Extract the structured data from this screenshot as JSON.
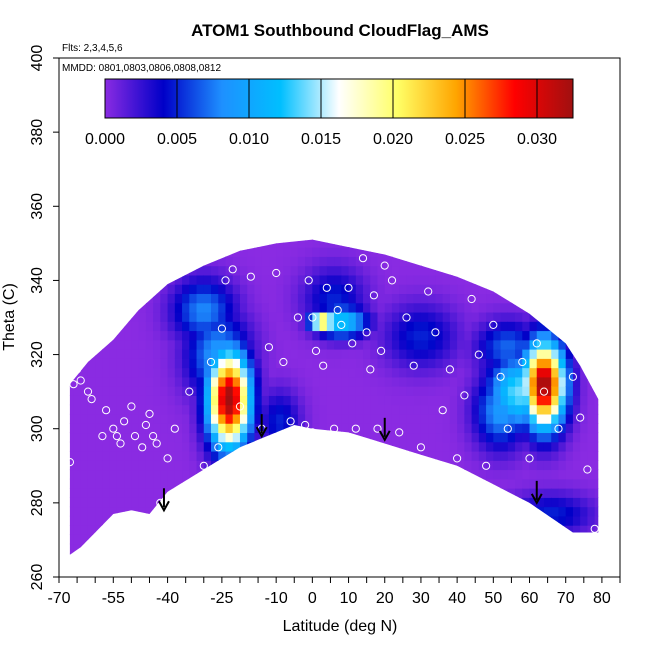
{
  "chart_data": {
    "type": "heatmap",
    "title": "ATOM1 Southbound CloudFlag_AMS",
    "notes": {
      "flights": "Flts: 2,3,4,5,6",
      "dates": "MMDD: 0801,0803,0806,0808,0812"
    },
    "xlabel": "Latitude (deg N)",
    "ylabel": "Theta (C)",
    "xlim": [
      -70,
      85
    ],
    "ylim": [
      260,
      400
    ],
    "x_tick_labels": [
      "-70",
      "-55",
      "-40",
      "-25",
      "-10",
      "0",
      "10",
      "20",
      "30",
      "40",
      "50",
      "60",
      "70",
      "80"
    ],
    "x_tick_values": [
      -70,
      -55,
      -40,
      -25,
      -10,
      0,
      10,
      20,
      30,
      40,
      50,
      60,
      70,
      80
    ],
    "y_tick_labels": [
      "260",
      "280",
      "300",
      "320",
      "340",
      "360",
      "380",
      "400"
    ],
    "y_tick_values": [
      260,
      280,
      300,
      320,
      340,
      360,
      380,
      400
    ],
    "colorbar": {
      "range": [
        0,
        0.0325
      ],
      "tick_values": [
        0,
        0.005,
        0.01,
        0.015,
        0.02,
        0.025,
        0.03
      ],
      "tick_labels": [
        "0.000",
        "0.005",
        "0.010",
        "0.015",
        "0.020",
        "0.025",
        "0.030"
      ],
      "colors": [
        "#8a2be2",
        "#0000c8",
        "#1e90ff",
        "#00bfff",
        "#ffffff",
        "#ffff66",
        "#ffa500",
        "#ff0000",
        "#a01010"
      ]
    },
    "domain_polygon": [
      [
        -67,
        266
      ],
      [
        -67,
        312
      ],
      [
        -62,
        318
      ],
      [
        -55,
        324
      ],
      [
        -48,
        332
      ],
      [
        -40,
        339
      ],
      [
        -30,
        344
      ],
      [
        -20,
        348
      ],
      [
        -10,
        350
      ],
      [
        0,
        351
      ],
      [
        10,
        349
      ],
      [
        20,
        347
      ],
      [
        30,
        344
      ],
      [
        40,
        341
      ],
      [
        50,
        337
      ],
      [
        60,
        331
      ],
      [
        70,
        323
      ],
      [
        74,
        317
      ],
      [
        79,
        308
      ],
      [
        79,
        272
      ],
      [
        72,
        272
      ],
      [
        60,
        280
      ],
      [
        50,
        285
      ],
      [
        40,
        290
      ],
      [
        30,
        293
      ],
      [
        20,
        296
      ],
      [
        10,
        299
      ],
      [
        0,
        300
      ],
      [
        -5,
        301
      ],
      [
        -10,
        299
      ],
      [
        -15,
        297
      ],
      [
        -20,
        295
      ],
      [
        -25,
        292
      ],
      [
        -30,
        289
      ],
      [
        -40,
        283
      ],
      [
        -45,
        277
      ],
      [
        -50,
        278
      ],
      [
        -55,
        277
      ],
      [
        -60,
        272
      ],
      [
        -64,
        268
      ]
    ],
    "hotspots": [
      {
        "lat": -23,
        "theta": 308,
        "slat": 4,
        "sth": 9,
        "value": 0.033
      },
      {
        "lat": -26,
        "theta": 320,
        "slat": 6,
        "sth": 8,
        "value": 0.009
      },
      {
        "lat": -30,
        "theta": 332,
        "slat": 6,
        "sth": 6,
        "value": 0.008
      },
      {
        "lat": 3,
        "theta": 329,
        "slat": 2.5,
        "sth": 1.5,
        "value": 0.028
      },
      {
        "lat": 8,
        "theta": 329,
        "slat": 5,
        "sth": 3,
        "value": 0.013
      },
      {
        "lat": 6,
        "theta": 335,
        "slat": 6,
        "sth": 6,
        "value": 0.005
      },
      {
        "lat": 30,
        "theta": 325,
        "slat": 7,
        "sth": 6,
        "value": 0.005
      },
      {
        "lat": -9,
        "theta": 302,
        "slat": 4,
        "sth": 6,
        "value": 0.005
      },
      {
        "lat": 64,
        "theta": 312,
        "slat": 4,
        "sth": 8,
        "value": 0.033
      },
      {
        "lat": 57,
        "theta": 310,
        "slat": 6,
        "sth": 7,
        "value": 0.014
      },
      {
        "lat": 52,
        "theta": 305,
        "slat": 5,
        "sth": 7,
        "value": 0.009
      },
      {
        "lat": 54,
        "theta": 322,
        "slat": 6,
        "sth": 5,
        "value": 0.007
      },
      {
        "lat": 66,
        "theta": 277,
        "slat": 8,
        "sth": 4,
        "value": 0.005
      }
    ],
    "sample_points": [
      [
        -67,
        291
      ],
      [
        -66,
        312
      ],
      [
        -65,
        316
      ],
      [
        -64,
        313
      ],
      [
        -62,
        310
      ],
      [
        -61,
        308
      ],
      [
        -58,
        298
      ],
      [
        -57,
        305
      ],
      [
        -55,
        300
      ],
      [
        -54,
        298
      ],
      [
        -53,
        296
      ],
      [
        -52,
        302
      ],
      [
        -50,
        306
      ],
      [
        -49,
        298
      ],
      [
        -47,
        295
      ],
      [
        -46,
        301
      ],
      [
        -45,
        304
      ],
      [
        -44,
        298
      ],
      [
        -43,
        296
      ],
      [
        -42,
        280
      ],
      [
        -40,
        292
      ],
      [
        -38,
        300
      ],
      [
        -36,
        283
      ],
      [
        -34,
        310
      ],
      [
        -30,
        290
      ],
      [
        -28,
        318
      ],
      [
        -26,
        295
      ],
      [
        -25,
        327
      ],
      [
        -24,
        340
      ],
      [
        -22,
        343
      ],
      [
        -20,
        306
      ],
      [
        -19,
        293
      ],
      [
        -17,
        341
      ],
      [
        -14,
        300
      ],
      [
        -12,
        322
      ],
      [
        -10,
        342
      ],
      [
        -8,
        318
      ],
      [
        -6,
        302
      ],
      [
        -4,
        330
      ],
      [
        -2,
        301
      ],
      [
        -1,
        340
      ],
      [
        0,
        299
      ],
      [
        0,
        330
      ],
      [
        1,
        321
      ],
      [
        3,
        317
      ],
      [
        4,
        338
      ],
      [
        6,
        300
      ],
      [
        7,
        332
      ],
      [
        8,
        328
      ],
      [
        10,
        338
      ],
      [
        11,
        323
      ],
      [
        12,
        300
      ],
      [
        14,
        346
      ],
      [
        15,
        326
      ],
      [
        16,
        316
      ],
      [
        17,
        336
      ],
      [
        18,
        300
      ],
      [
        19,
        321
      ],
      [
        20,
        344
      ],
      [
        22,
        340
      ],
      [
        24,
        299
      ],
      [
        26,
        330
      ],
      [
        28,
        317
      ],
      [
        30,
        295
      ],
      [
        32,
        337
      ],
      [
        34,
        326
      ],
      [
        36,
        305
      ],
      [
        38,
        316
      ],
      [
        40,
        292
      ],
      [
        42,
        309
      ],
      [
        44,
        335
      ],
      [
        46,
        320
      ],
      [
        48,
        290
      ],
      [
        50,
        328
      ],
      [
        52,
        314
      ],
      [
        54,
        300
      ],
      [
        56,
        336
      ],
      [
        58,
        318
      ],
      [
        60,
        292
      ],
      [
        62,
        323
      ],
      [
        64,
        310
      ],
      [
        66,
        328
      ],
      [
        68,
        300
      ],
      [
        70,
        326
      ],
      [
        72,
        314
      ],
      [
        74,
        303
      ],
      [
        76,
        289
      ],
      [
        78,
        273
      ]
    ],
    "arrows": [
      {
        "lat": -41,
        "theta": 278
      },
      {
        "lat": -14,
        "theta": 298
      },
      {
        "lat": 20,
        "theta": 297
      },
      {
        "lat": 62,
        "theta": 280
      }
    ],
    "grid": false,
    "legend": "top"
  }
}
